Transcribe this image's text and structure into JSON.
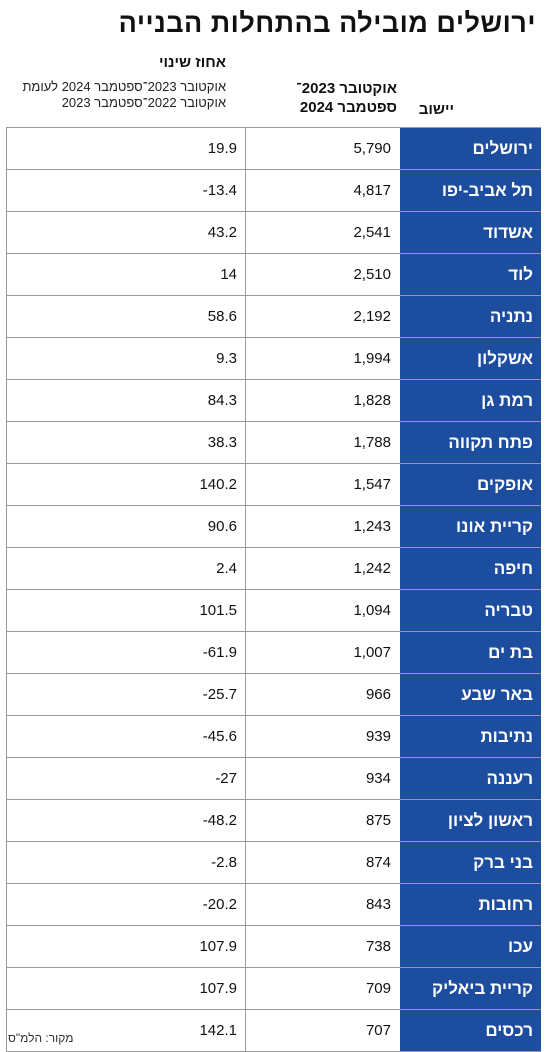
{
  "title": "ירושלים מובילה בהתחלות הבנייה",
  "headers": {
    "city": "יישוב",
    "period_line1": "אוקטובר 2023־",
    "period_line2": "ספטמבר 2024",
    "change_title": "אחוז שינוי",
    "change_sub_line1": "אוקטובר 2023־ספטמבר 2024 לעומת",
    "change_sub_line2": "אוקטובר 2022־ספטמבר 2023"
  },
  "rows": [
    {
      "city": "ירושלים",
      "value": "5,790",
      "change": "19.9"
    },
    {
      "city": "תל אביב-יפו",
      "value": "4,817",
      "change": "-13.4"
    },
    {
      "city": "אשדוד",
      "value": "2,541",
      "change": "43.2"
    },
    {
      "city": "לוד",
      "value": "2,510",
      "change": "14"
    },
    {
      "city": "נתניה",
      "value": "2,192",
      "change": "58.6"
    },
    {
      "city": "אשקלון",
      "value": "1,994",
      "change": "9.3"
    },
    {
      "city": "רמת גן",
      "value": "1,828",
      "change": "84.3"
    },
    {
      "city": "פתח תקווה",
      "value": "1,788",
      "change": "38.3"
    },
    {
      "city": "אופקים",
      "value": "1,547",
      "change": "140.2"
    },
    {
      "city": "קריית אונו",
      "value": "1,243",
      "change": "90.6"
    },
    {
      "city": "חיפה",
      "value": "1,242",
      "change": "2.4"
    },
    {
      "city": "טבריה",
      "value": "1,094",
      "change": "101.5"
    },
    {
      "city": "בת ים",
      "value": "1,007",
      "change": "-61.9"
    },
    {
      "city": "באר שבע",
      "value": "966",
      "change": "-25.7"
    },
    {
      "city": "נתיבות",
      "value": "939",
      "change": "-45.6"
    },
    {
      "city": "רעננה",
      "value": "934",
      "change": "-27"
    },
    {
      "city": "ראשון לציון",
      "value": "875",
      "change": "-48.2"
    },
    {
      "city": "בני ברק",
      "value": "874",
      "change": "-2.8"
    },
    {
      "city": "רחובות",
      "value": "843",
      "change": "-20.2"
    },
    {
      "city": "עכו",
      "value": "738",
      "change": "107.9"
    },
    {
      "city": "קריית ביאליק",
      "value": "709",
      "change": "107.9"
    },
    {
      "city": "רכסים",
      "value": "707",
      "change": "142.1"
    }
  ],
  "source": "מקור: הלמ\"ס",
  "colors": {
    "city_bg": "#1d4d9f",
    "city_text": "#ffffff"
  }
}
